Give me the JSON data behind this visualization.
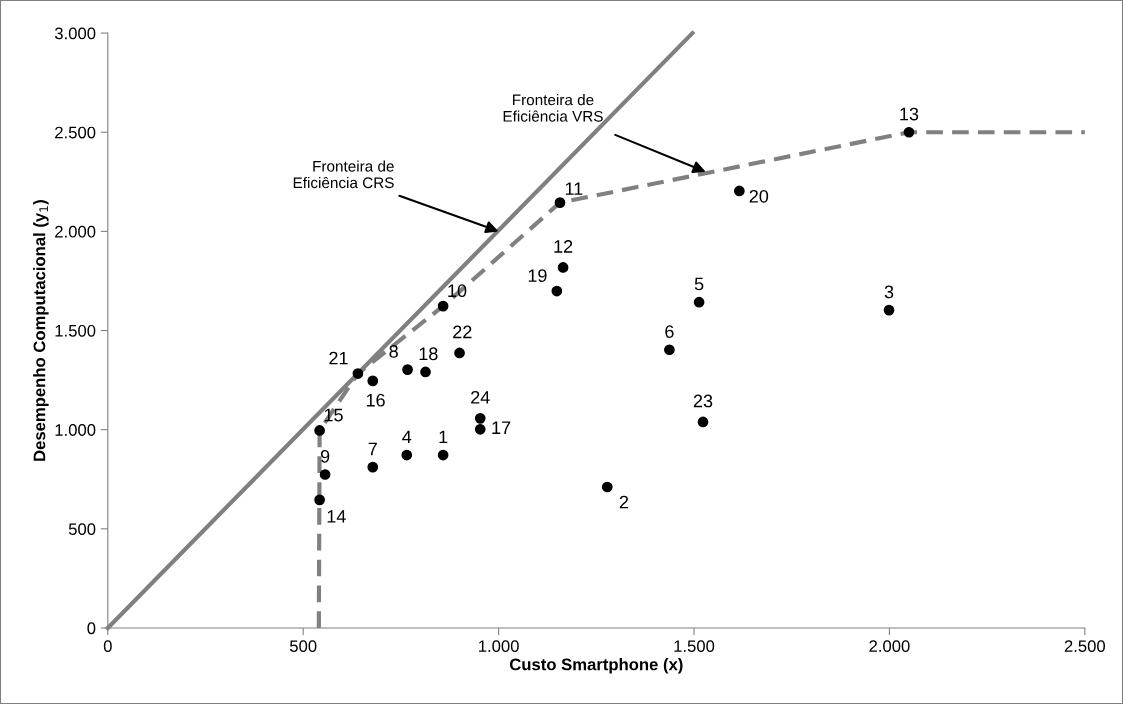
{
  "chart_data": {
    "type": "scatter",
    "xlabel": "Custo Smartphone (x)",
    "ylabel": "Desempenho Computacional (y$_{1}$)",
    "xlim": [
      0,
      2500
    ],
    "ylim": [
      0,
      3000
    ],
    "xticks": [
      0,
      500,
      {
        "value": 1000,
        "label": "1.000"
      },
      {
        "value": 1500,
        "label": "1.500"
      },
      {
        "value": 2000,
        "label": "2.000"
      },
      {
        "value": 2500,
        "label": "2.500"
      }
    ],
    "yticks": [
      0,
      500,
      {
        "value": 1000,
        "label": "1.000"
      },
      {
        "value": 1500,
        "label": "1.500"
      },
      {
        "value": 2000,
        "label": "2.000"
      },
      {
        "value": 2500,
        "label": "2.500"
      },
      {
        "value": 3000,
        "label": "3.000"
      }
    ],
    "grid": false,
    "legend": false,
    "series": [
      {
        "type": "line",
        "color": "#808080",
        "line_style": "solid",
        "marker": "none",
        "x": [
          0,
          1496
        ],
        "values": [
          0,
          3000
        ]
      },
      {
        "type": "line",
        "color": "#808080",
        "line_style": "dashed",
        "marker": "none",
        "x": [
          540,
          542,
          640,
          858,
          1157,
          2050,
          2500
        ],
        "values": [
          0,
          996,
          1283,
          1623,
          2145,
          2500,
          2500
        ]
      },
      {
        "color": "#000000",
        "marker": "circle",
        "x": [
          858,
          1278,
          1999,
          765,
          1513,
          1437,
          678,
          767,
          556,
          858,
          1157,
          1165,
          2050,
          542,
          542,
          678,
          953,
          813,
          1149,
          1616,
          640,
          900,
          1523,
          953
        ],
        "values": [
          872,
          711,
          1603,
          872,
          1643,
          1403,
          811,
          1303,
          774,
          1623,
          2145,
          1818,
          2500,
          646,
          996,
          1246,
          1002,
          1291,
          1699,
          2204,
          1283,
          1387,
          1039,
          1057
        ]
      }
    ],
    "annotations": [
      {
        "text": "Fronteira de\nEficiência CRS",
        "x": 1000,
        "y": 2000
      },
      {
        "text": "Fronteira de\nEficiência VRS",
        "x": 1530,
        "y": 2300
      },
      {
        "text": "1",
        "x": 858,
        "y": 872
      },
      {
        "text": "2",
        "x": 1278,
        "y": 711
      },
      {
        "text": "3",
        "x": 1999,
        "y": 1603
      },
      {
        "text": "4",
        "x": 765,
        "y": 872
      },
      {
        "text": "5",
        "x": 1513,
        "y": 1643
      },
      {
        "text": "6",
        "x": 1437,
        "y": 1403
      },
      {
        "text": "7",
        "x": 678,
        "y": 811
      },
      {
        "text": "8",
        "x": 767,
        "y": 1303
      },
      {
        "text": "9",
        "x": 556,
        "y": 774
      },
      {
        "text": "10",
        "x": 858,
        "y": 1623
      },
      {
        "text": "11",
        "x": 1157,
        "y": 2145
      },
      {
        "text": "12",
        "x": 1165,
        "y": 1818
      },
      {
        "text": "13",
        "x": 2050,
        "y": 2500
      },
      {
        "text": "14",
        "x": 542,
        "y": 646
      },
      {
        "text": "15",
        "x": 542,
        "y": 996
      },
      {
        "text": "16",
        "x": 678,
        "y": 1246
      },
      {
        "text": "17",
        "x": 953,
        "y": 1002
      },
      {
        "text": "18",
        "x": 813,
        "y": 1291
      },
      {
        "text": "19",
        "x": 1149,
        "y": 1699
      },
      {
        "text": "20",
        "x": 1616,
        "y": 2204
      },
      {
        "text": "21",
        "x": 640,
        "y": 1283
      },
      {
        "text": "22",
        "x": 900,
        "y": 1387
      },
      {
        "text": "23",
        "x": 1523,
        "y": 1039
      },
      {
        "text": "24",
        "x": 953,
        "y": 1057
      }
    ]
  }
}
